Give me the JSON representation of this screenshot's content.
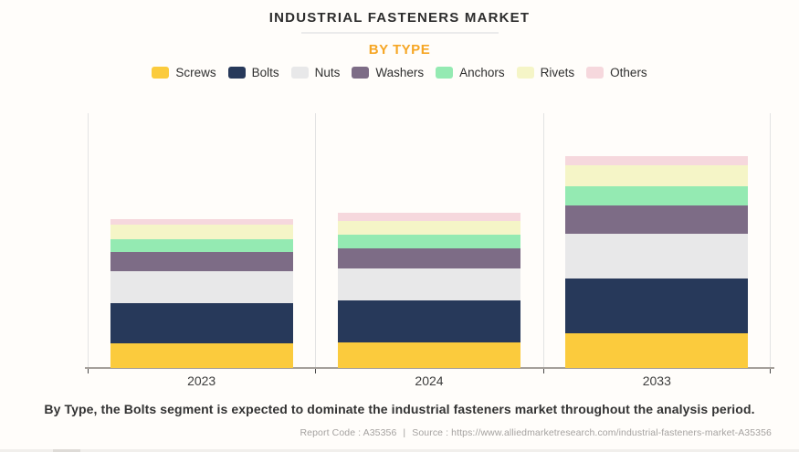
{
  "header": {
    "title": "INDUSTRIAL FASTENERS MARKET",
    "subtitle": "BY TYPE",
    "subtitle_color": "#F6A624"
  },
  "chart_data": {
    "type": "bar",
    "stacked": true,
    "title": "INDUSTRIAL FASTENERS MARKET",
    "subtitle": "BY TYPE",
    "categories": [
      "2023",
      "2024",
      "2033"
    ],
    "series": [
      {
        "name": "Screws",
        "color": "#FBCB3D",
        "values": [
          27,
          28,
          38
        ]
      },
      {
        "name": "Bolts",
        "color": "#27395A",
        "values": [
          44,
          46,
          60
        ]
      },
      {
        "name": "Nuts",
        "color": "#E8E8E9",
        "values": [
          35,
          35,
          49
        ]
      },
      {
        "name": "Washers",
        "color": "#7D6C86",
        "values": [
          21,
          22,
          31
        ]
      },
      {
        "name": "Anchors",
        "color": "#94EAB2",
        "values": [
          14,
          15,
          21
        ]
      },
      {
        "name": "Rivets",
        "color": "#F5F5C7",
        "values": [
          16,
          15,
          23
        ]
      },
      {
        "name": "Others",
        "color": "#F6D8DD",
        "values": [
          6,
          9,
          10
        ]
      }
    ],
    "value_unit": "relative-px (no numeric y-axis shown in chart)",
    "totals": [
      163,
      170,
      232
    ],
    "xlabel": "",
    "ylabel": "",
    "y_axis_visible": false,
    "grid": "vertical-section-lines-only",
    "legend_position": "top"
  },
  "footer": {
    "caption": "By Type, the Bolts segment is expected to dominate the industrial fasteners market throughout the analysis period.",
    "report_code": "Report Code : A35356",
    "separator": "|",
    "source": "Source : https://www.alliedmarketresearch.com/industrial-fasteners-market-A35356"
  }
}
